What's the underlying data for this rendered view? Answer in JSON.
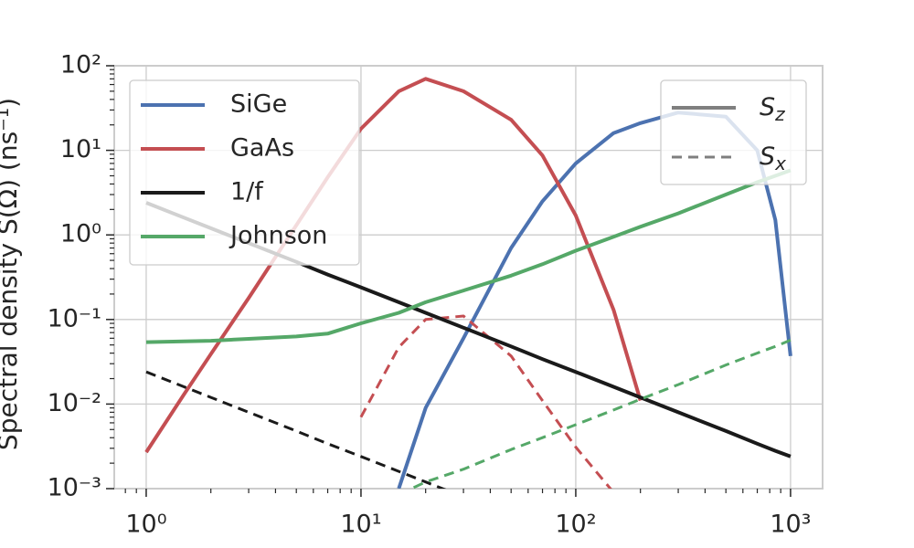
{
  "chart_data": {
    "type": "line",
    "y_label": "Spectral density S(Ω) (ns⁻¹)",
    "x_log": true,
    "y_log": true,
    "grid": true,
    "xlim": [
      0.71,
      1410
    ],
    "ylim": [
      0.001,
      100
    ],
    "xticks": [
      {
        "value": 1,
        "label": "10⁰"
      },
      {
        "value": 10,
        "label": "10¹"
      },
      {
        "value": 100,
        "label": "10²"
      },
      {
        "value": 1000,
        "label": "10³"
      }
    ],
    "yticks": [
      {
        "value": 0.001,
        "label": "10⁻³"
      },
      {
        "value": 0.01,
        "label": "10⁻²"
      },
      {
        "value": 0.1,
        "label": "10⁻¹"
      },
      {
        "value": 1,
        "label": "10⁰"
      },
      {
        "value": 10,
        "label": "10¹"
      },
      {
        "value": 100,
        "label": "10²"
      }
    ],
    "legend": "upper left",
    "style_legend": "upper right",
    "x": [
      1,
      1.5,
      2,
      3,
      5,
      7,
      10,
      15,
      20,
      30,
      50,
      70,
      100,
      150,
      200,
      300,
      500,
      700,
      850,
      1000
    ],
    "line_styles": [
      {
        "symbol": "S",
        "subscript": "z",
        "color": "#7f7f7f",
        "dash": "solid",
        "values_key": "values"
      },
      {
        "symbol": "S",
        "subscript": "x",
        "color": "#7f7f7f",
        "dash": "dashed",
        "values_key": "values_x"
      }
    ],
    "series": [
      {
        "name": "SiGe",
        "color": "#4c72b0",
        "values": [
          null,
          null,
          null,
          null,
          null,
          null,
          null,
          0.001,
          0.009,
          0.06,
          0.7,
          2.5,
          7,
          16,
          21,
          28,
          25,
          10,
          1.5,
          0.037
        ],
        "values_x": [
          null,
          null,
          null,
          null,
          null,
          null,
          null,
          null,
          null,
          null,
          null,
          null,
          null,
          null,
          null,
          null,
          null,
          null,
          null,
          null
        ]
      },
      {
        "name": "GaAs",
        "color": "#c44e52",
        "values": [
          0.0027,
          0.013,
          0.039,
          0.18,
          1.3,
          4.8,
          18,
          50,
          70,
          50,
          23,
          8.7,
          1.7,
          0.13,
          0.011,
          null,
          null,
          null,
          null,
          null
        ],
        "values_x": [
          null,
          null,
          null,
          null,
          null,
          null,
          0.007,
          0.047,
          0.1,
          0.11,
          0.037,
          0.011,
          0.0031,
          0.0009,
          null,
          null,
          null,
          null,
          null,
          null
        ]
      },
      {
        "name": "1/f",
        "color": "#1a1a1a",
        "values": [
          2.4,
          1.6,
          1.2,
          0.8,
          0.48,
          0.34,
          0.24,
          0.16,
          0.12,
          0.08,
          0.048,
          0.034,
          0.024,
          0.016,
          0.012,
          0.008,
          0.0048,
          0.0034,
          0.0028,
          0.0024
        ],
        "values_x": [
          0.024,
          0.016,
          0.012,
          0.008,
          0.0048,
          0.0034,
          0.0024,
          0.0016,
          0.0012,
          0.0008,
          null,
          null,
          null,
          null,
          null,
          null,
          null,
          null,
          null,
          null
        ]
      },
      {
        "name": "Johnson",
        "color": "#55a868",
        "values": [
          0.054,
          0.055,
          0.056,
          0.059,
          0.063,
          0.068,
          0.09,
          0.12,
          0.16,
          0.22,
          0.33,
          0.45,
          0.65,
          0.95,
          1.25,
          1.8,
          3,
          4.2,
          5,
          5.8
        ],
        "values_x": [
          null,
          null,
          null,
          null,
          null,
          null,
          null,
          0.00085,
          0.0012,
          0.0017,
          0.0029,
          0.004,
          0.0057,
          0.0085,
          0.0114,
          0.017,
          0.029,
          0.04,
          0.048,
          0.057
        ]
      }
    ]
  }
}
